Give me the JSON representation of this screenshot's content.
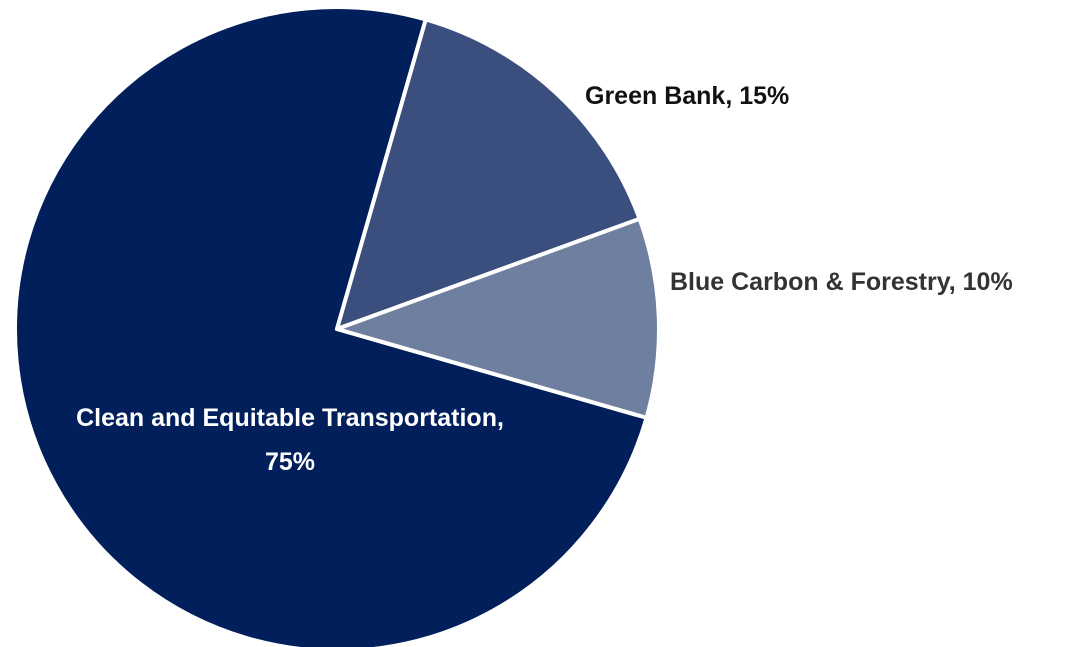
{
  "chart_data": {
    "type": "pie",
    "title": "",
    "slices": [
      {
        "name": "Clean and Equitable Transportation",
        "value": 75,
        "label_lines": [
          "Clean and Equitable Transportation,",
          "75%"
        ],
        "color": "#001f5b"
      },
      {
        "name": "Green Bank",
        "value": 15,
        "label_lines": [
          "Green Bank, 15%"
        ],
        "color": "#3a4f7e"
      },
      {
        "name": "Blue Carbon & Forestry",
        "value": 10,
        "label_lines": [
          "Blue Carbon & Forestry, 10%"
        ],
        "color": "#6e7f9f"
      }
    ],
    "label_colors": [
      "#ffffff",
      "#111111",
      "#333333"
    ],
    "edge_color": "#ffffff"
  }
}
